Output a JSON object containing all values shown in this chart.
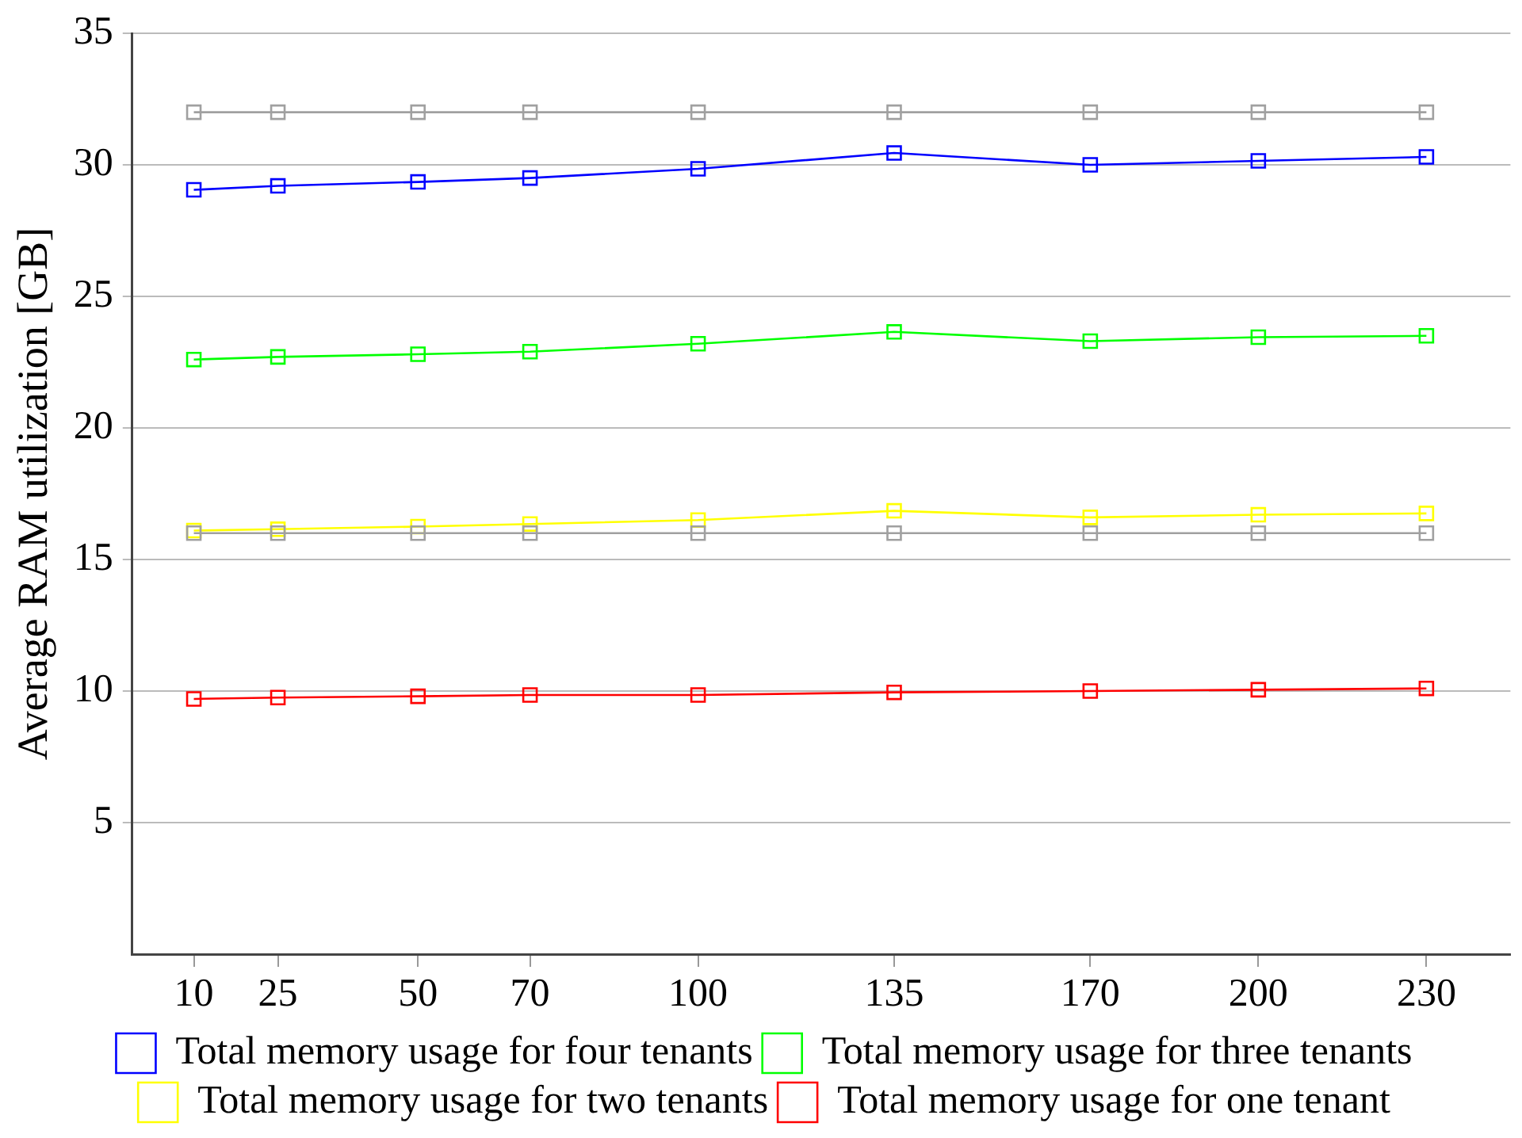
{
  "chart_data": {
    "type": "line",
    "ylabel": "Average RAM utilization [GB]",
    "x": [
      10,
      25,
      50,
      70,
      100,
      135,
      170,
      200,
      230
    ],
    "xlim": [
      -1,
      245
    ],
    "xticks": [
      10,
      25,
      50,
      70,
      100,
      135,
      170,
      200,
      230
    ],
    "ylim": [
      0,
      35
    ],
    "yticks": [
      5,
      10,
      15,
      20,
      25,
      30,
      35
    ],
    "grid": "y",
    "legend": "bottom",
    "marker": "square",
    "line_style": "solid",
    "series": [
      {
        "color": "#a0a0a0",
        "values": [
          32,
          32,
          32,
          32,
          32,
          32,
          32,
          32,
          32
        ]
      },
      {
        "color": "#0000ff",
        "values": [
          29.05,
          29.2,
          29.35,
          29.5,
          29.85,
          30.45,
          30,
          30.15,
          30.3
        ],
        "name": "Total memory usage for four tenants"
      },
      {
        "color": "#00ff00",
        "values": [
          22.6,
          22.7,
          22.8,
          22.9,
          23.2,
          23.65,
          23.3,
          23.45,
          23.5
        ],
        "name": "Total memory usage for three tenants"
      },
      {
        "color": "#ffff00",
        "values": [
          16.1,
          16.15,
          16.25,
          16.35,
          16.5,
          16.85,
          16.6,
          16.7,
          16.75
        ],
        "name": "Total memory usage for two tenants"
      },
      {
        "color": "#a0a0a0",
        "values": [
          16,
          16,
          16,
          16,
          16,
          16,
          16,
          16,
          16
        ]
      },
      {
        "color": "#ff0000",
        "values": [
          9.7,
          9.75,
          9.8,
          9.85,
          9.85,
          9.95,
          10,
          10.05,
          10.1
        ],
        "name": "Total memory usage for one tenant"
      }
    ]
  }
}
